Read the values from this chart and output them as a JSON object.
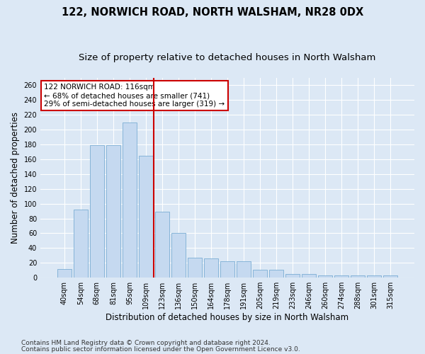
{
  "title": "122, NORWICH ROAD, NORTH WALSHAM, NR28 0DX",
  "subtitle": "Size of property relative to detached houses in North Walsham",
  "xlabel": "Distribution of detached houses by size in North Walsham",
  "ylabel": "Number of detached properties",
  "categories": [
    "40sqm",
    "54sqm",
    "68sqm",
    "81sqm",
    "95sqm",
    "109sqm",
    "123sqm",
    "136sqm",
    "150sqm",
    "164sqm",
    "178sqm",
    "191sqm",
    "205sqm",
    "219sqm",
    "233sqm",
    "246sqm",
    "260sqm",
    "274sqm",
    "288sqm",
    "301sqm",
    "315sqm"
  ],
  "values": [
    12,
    92,
    179,
    179,
    210,
    165,
    89,
    60,
    27,
    26,
    22,
    22,
    11,
    11,
    5,
    5,
    3,
    3,
    3,
    3,
    3
  ],
  "bar_color": "#c5d9f0",
  "bar_edge_color": "#7aadd4",
  "vline_x": 5.5,
  "vline_color": "#cc0000",
  "annotation_text": "122 NORWICH ROAD: 116sqm\n← 68% of detached houses are smaller (741)\n29% of semi-detached houses are larger (319) →",
  "annotation_box_color": "#ffffff",
  "annotation_box_edge": "#cc0000",
  "ylim": [
    0,
    270
  ],
  "yticks": [
    0,
    20,
    40,
    60,
    80,
    100,
    120,
    140,
    160,
    180,
    200,
    220,
    240,
    260
  ],
  "footer1": "Contains HM Land Registry data © Crown copyright and database right 2024.",
  "footer2": "Contains public sector information licensed under the Open Government Licence v3.0.",
  "bg_color": "#dce8f5",
  "plot_bg_color": "#dce8f5",
  "grid_color": "#ffffff",
  "title_fontsize": 10.5,
  "subtitle_fontsize": 9.5,
  "axis_label_fontsize": 8.5,
  "tick_fontsize": 7,
  "annotation_fontsize": 7.5,
  "footer_fontsize": 6.5
}
